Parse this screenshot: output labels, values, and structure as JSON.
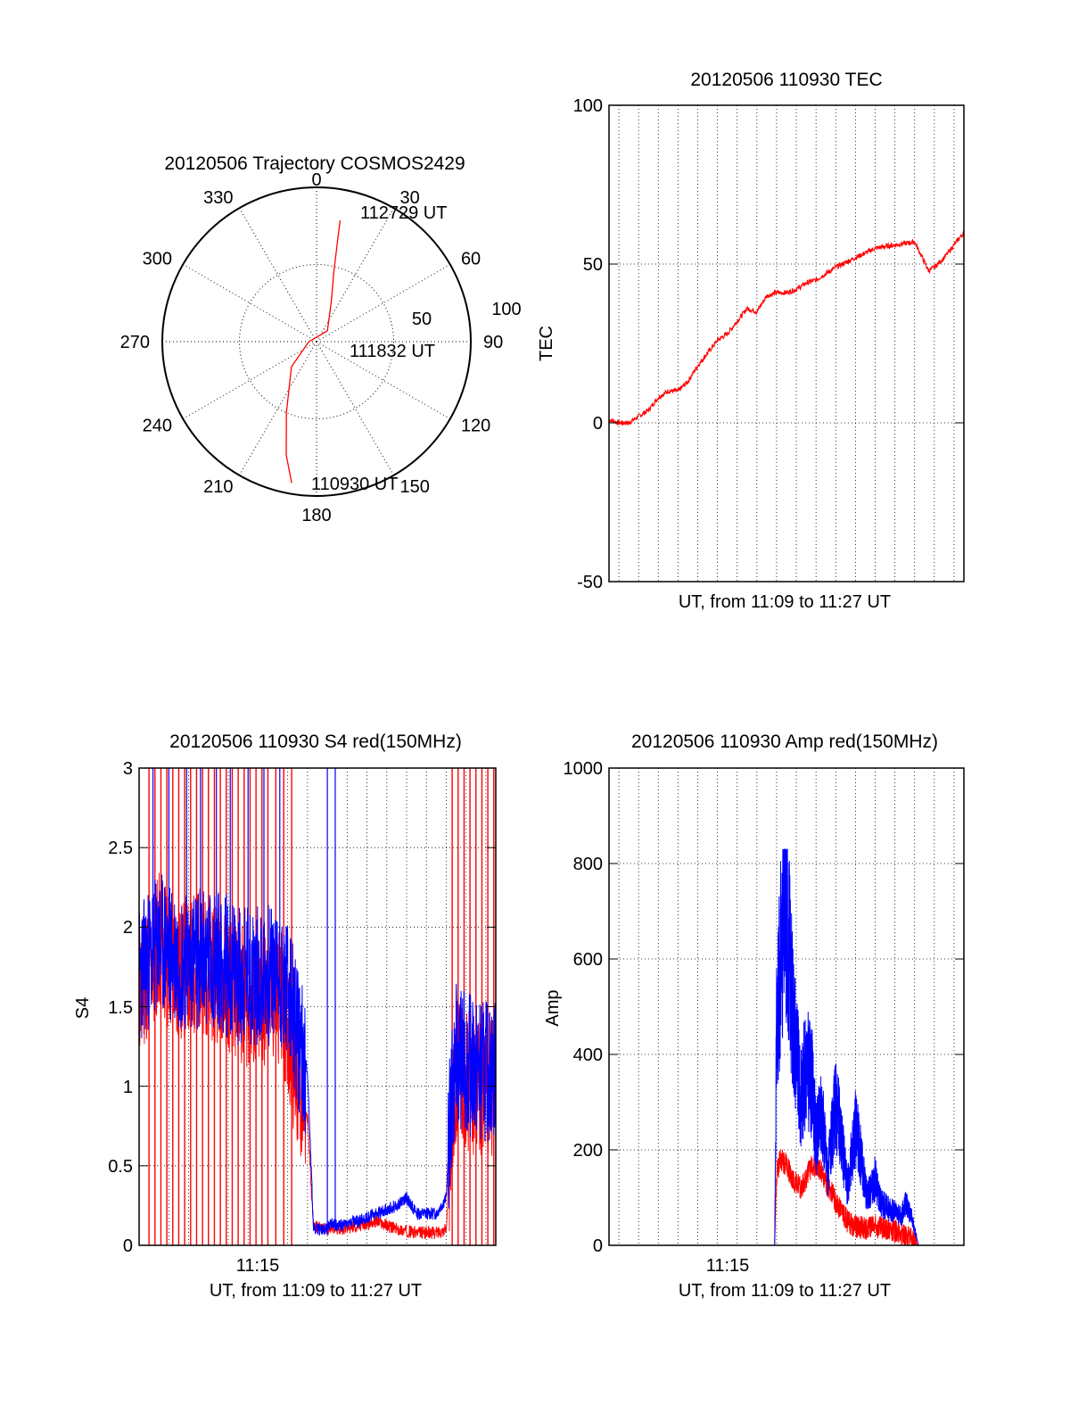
{
  "chart_data": [
    {
      "id": "trajectory",
      "type": "polar",
      "title": "20120506 Trajectory COSMOS2429",
      "angle_labels": [
        "0",
        "30",
        "60",
        "90",
        "120",
        "150",
        "180",
        "210",
        "240",
        "270",
        "300",
        "330"
      ],
      "radius_labels": [
        "50",
        "100"
      ],
      "radius_range": [
        0,
        100
      ],
      "grid": true,
      "series": [
        {
          "color": "#ff0000",
          "points": [
            {
              "az": 190,
              "r": 93
            },
            {
              "az": 195,
              "r": 76
            },
            {
              "az": 203,
              "r": 50
            },
            {
              "az": 225,
              "r": 23
            },
            {
              "az": 270,
              "r": 5
            },
            {
              "az": 45,
              "r": 10
            },
            {
              "az": 20,
              "r": 28
            },
            {
              "az": 14,
              "r": 46
            },
            {
              "az": 12,
              "r": 64
            },
            {
              "az": 11,
              "r": 80
            }
          ]
        }
      ],
      "annotations": [
        {
          "text": "112729 UT",
          "az": 11,
          "r": 80
        },
        {
          "text": "111832 UT",
          "az": 102,
          "r": 10
        },
        {
          "text": "110930 UT",
          "az": 190,
          "r": 93
        }
      ]
    },
    {
      "id": "tec",
      "type": "line",
      "title": "20120506 110930 TEC",
      "xlabel": "UT, from 11:09 to 11:27 UT",
      "ylabel": "TEC",
      "x_range_min": [
        9.5,
        27.5
      ],
      "ylim": [
        -50,
        100
      ],
      "yticks": [
        "-50",
        "0",
        "50",
        "100"
      ],
      "grid": true,
      "series": [
        {
          "color": "#ff0000",
          "x": [
            9.5,
            10.0,
            10.5,
            11.0,
            11.5,
            12.0,
            12.5,
            13.0,
            13.5,
            14.0,
            14.5,
            15.0,
            15.5,
            16.0,
            16.5,
            17.0,
            17.5,
            18.0,
            18.5,
            19.0,
            19.5,
            20.0,
            21.0,
            22.0,
            23.0,
            24.0,
            25.0,
            25.7,
            26.0,
            26.5,
            27.0,
            27.5
          ],
          "y": [
            1,
            0,
            0,
            2,
            4,
            8,
            10,
            10,
            13,
            18,
            22,
            26,
            28,
            32,
            36,
            35,
            40,
            41,
            41,
            42,
            44,
            45,
            49,
            52,
            55,
            56,
            57,
            48,
            49,
            52,
            56,
            60
          ]
        }
      ]
    },
    {
      "id": "s4",
      "type": "line",
      "title": "20120506 110930 S4 red(150MHz)",
      "xlabel": "UT, from 11:09 to 11:27 UT",
      "ylabel": "S4",
      "x_range_min": [
        9.5,
        27.5
      ],
      "xticks": [
        {
          "value": 15,
          "label": "11:15"
        }
      ],
      "ylim": [
        0,
        3
      ],
      "yticks": [
        "0",
        "0.5",
        "1",
        "1.5",
        "2",
        "2.5",
        "3"
      ],
      "grid": true,
      "series": [
        {
          "color": "#ff0000",
          "x": [
            9.5,
            10.5,
            11.5,
            12.5,
            13.5,
            14.5,
            15.5,
            16.5,
            17.0,
            17.5,
            18.0,
            18.3,
            19.0,
            19.2,
            19.5,
            20.5,
            21.5,
            22.5,
            23.5,
            24.5,
            25.0,
            25.2,
            25.5,
            26.5,
            27.5
          ],
          "y": [
            1.6,
            1.9,
            1.7,
            1.8,
            1.7,
            1.6,
            1.5,
            1.6,
            1.4,
            1.0,
            0.8,
            0.12,
            0.1,
            0.12,
            0.1,
            0.12,
            0.15,
            0.1,
            0.08,
            0.08,
            0.1,
            0.6,
            1.1,
            1.0,
            1.0
          ]
        },
        {
          "color": "#0000ff",
          "x": [
            9.5,
            10.5,
            11.5,
            12.5,
            13.5,
            14.5,
            15.5,
            16.5,
            17.0,
            17.5,
            18.0,
            18.3,
            19.0,
            19.2,
            19.5,
            20.5,
            21.5,
            22.5,
            23.0,
            23.5,
            24.5,
            25.0,
            25.2,
            25.5,
            26.5,
            27.5
          ],
          "y": [
            1.7,
            1.9,
            1.8,
            1.8,
            1.8,
            1.7,
            1.7,
            1.7,
            1.6,
            1.3,
            1.1,
            0.1,
            0.1,
            0.15,
            0.12,
            0.15,
            0.2,
            0.25,
            0.3,
            0.2,
            0.2,
            0.3,
            0.8,
            1.2,
            1.1,
            1.1
          ]
        }
      ],
      "red_spikes_to_top_x": [
        10.0,
        10.3,
        10.6,
        10.9,
        11.2,
        11.5,
        11.8,
        12.1,
        12.4,
        12.7,
        13.0,
        13.3,
        13.6,
        13.9,
        14.2,
        14.5,
        14.8,
        15.1,
        15.4,
        15.7,
        16.0,
        16.4,
        16.8,
        17.2,
        25.3,
        25.6,
        25.9,
        26.2,
        26.5,
        26.8,
        27.1,
        27.4
      ],
      "blue_spikes_to_top_x": [
        10.2,
        11.0,
        11.9,
        12.6,
        13.4,
        14.1,
        15.0,
        15.8,
        16.6,
        19.0,
        19.4
      ]
    },
    {
      "id": "amp",
      "type": "line",
      "title": "20120506 110930 Amp red(150MHz)",
      "xlabel": "UT, from 11:09 to 11:27 UT",
      "ylabel": "Amp",
      "x_range_min": [
        9.5,
        27.5
      ],
      "xticks": [
        {
          "value": 15,
          "label": "11:15"
        }
      ],
      "ylim": [
        0,
        1000
      ],
      "yticks": [
        "0",
        "200",
        "400",
        "600",
        "800",
        "1000"
      ],
      "grid": true,
      "series": [
        {
          "color": "#ff0000",
          "x": [
            9.5,
            17.9,
            18.0,
            18.2,
            18.5,
            18.8,
            19.2,
            19.5,
            19.8,
            20.2,
            20.5,
            20.8,
            21.0,
            21.3,
            21.6,
            22.0,
            22.5,
            23.0,
            23.5,
            24.0,
            24.5,
            24.9,
            25.2,
            27.5
          ],
          "y": [
            0,
            0,
            150,
            180,
            170,
            140,
            120,
            140,
            170,
            160,
            130,
            110,
            90,
            70,
            50,
            40,
            35,
            40,
            35,
            30,
            20,
            10,
            0,
            0
          ]
        },
        {
          "color": "#0000ff",
          "x": [
            9.5,
            17.9,
            18.0,
            18.2,
            18.4,
            18.6,
            18.8,
            19.0,
            19.2,
            19.5,
            19.8,
            20.0,
            20.3,
            20.6,
            21.0,
            21.3,
            21.6,
            22.0,
            22.3,
            22.6,
            23.0,
            23.3,
            23.6,
            24.0,
            24.3,
            24.6,
            24.9,
            25.2,
            27.5
          ],
          "y": [
            0,
            0,
            450,
            600,
            700,
            650,
            500,
            420,
            300,
            380,
            340,
            220,
            280,
            150,
            300,
            220,
            120,
            250,
            180,
            100,
            140,
            90,
            80,
            70,
            60,
            90,
            50,
            0,
            0
          ]
        }
      ]
    }
  ]
}
